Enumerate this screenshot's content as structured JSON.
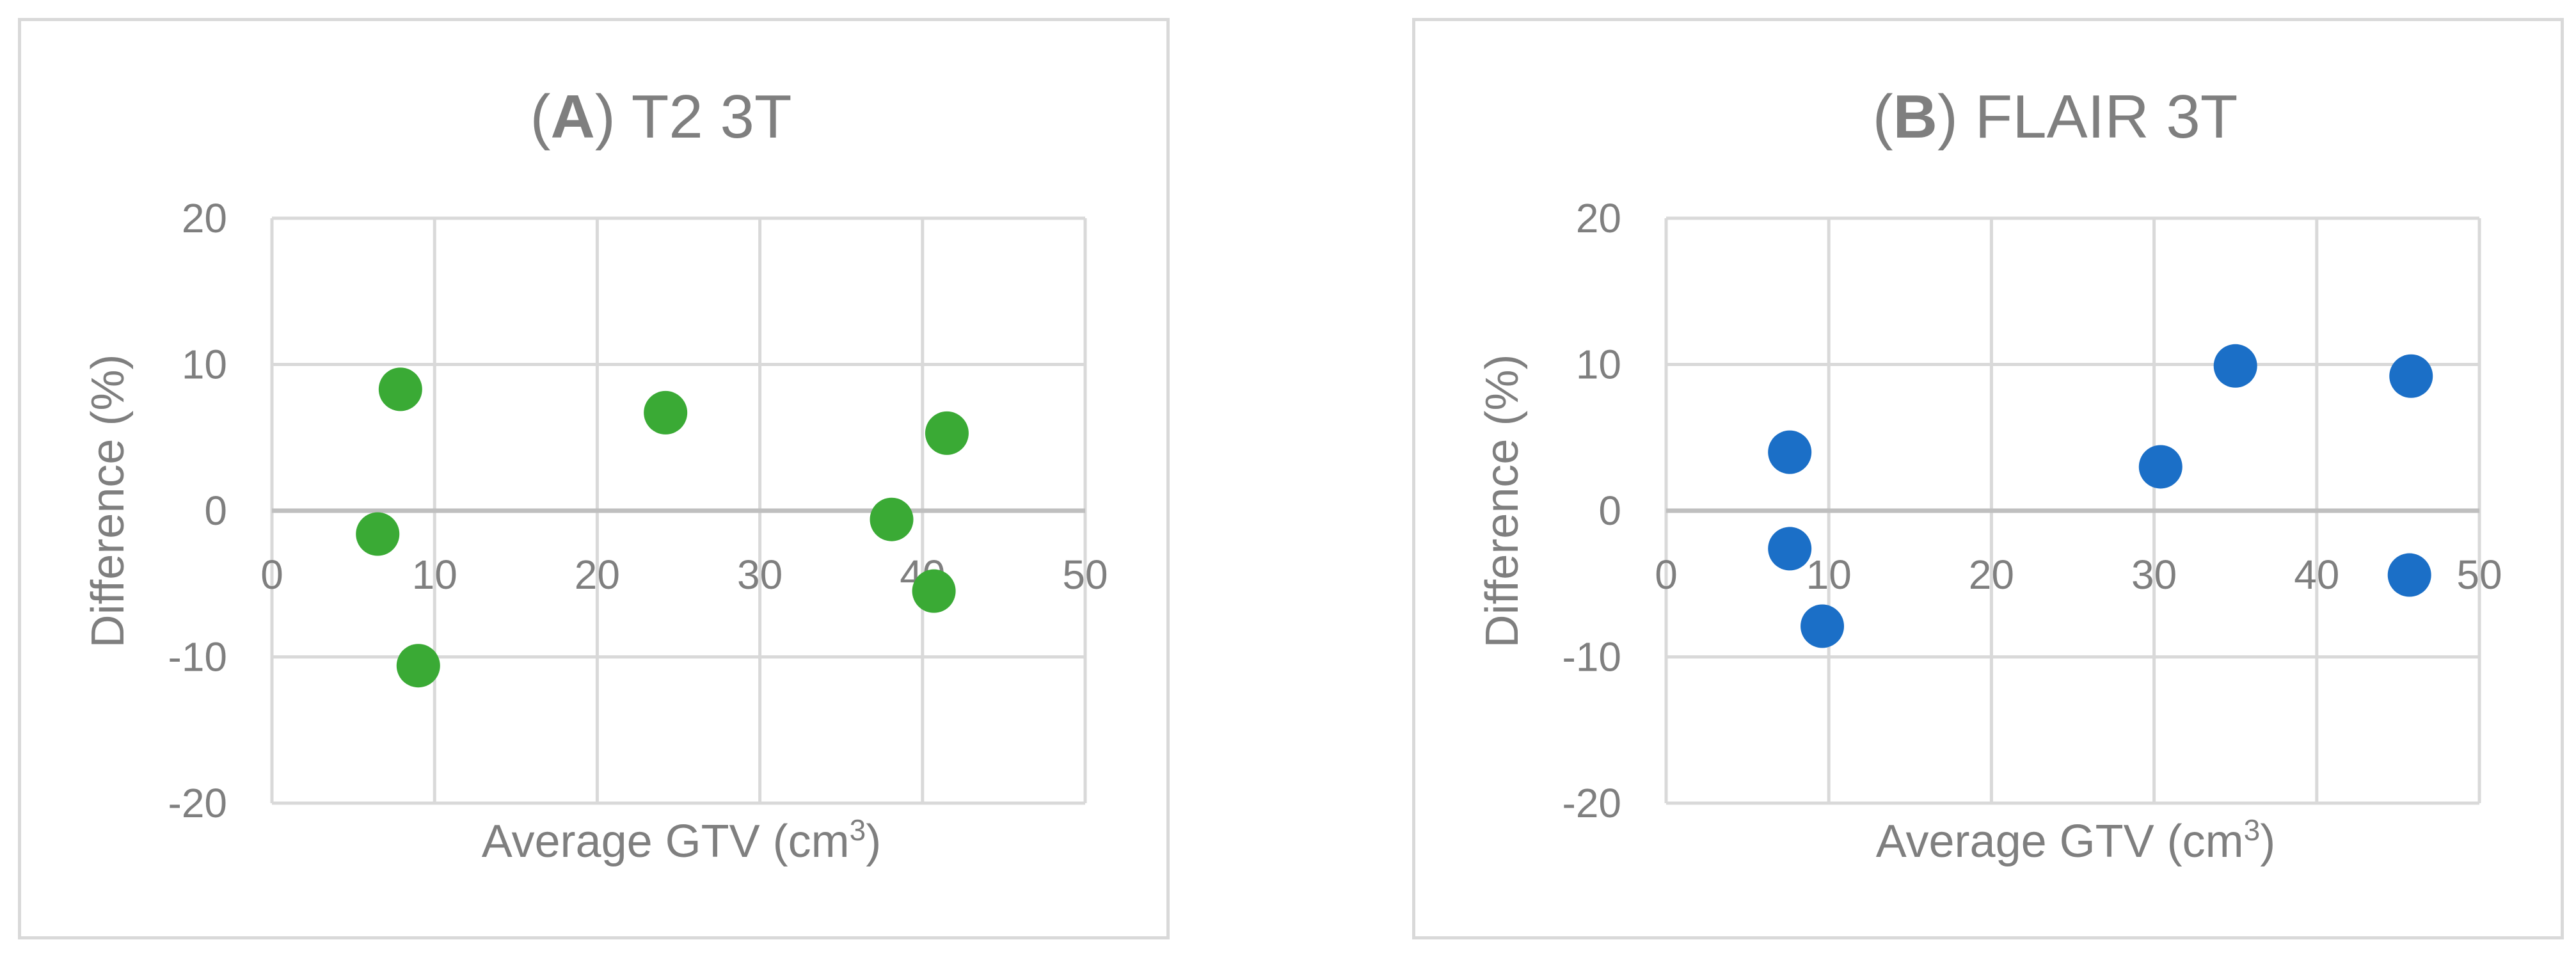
{
  "chart_data": [
    {
      "type": "scatter",
      "title_prefix": "(",
      "title_letter": "A",
      "title_rest": ") T2 3T",
      "xlabel": "Average GTV (cm",
      "xlabel_sup": "3",
      "xlabel_suffix": ")",
      "ylabel": "Difference (%)",
      "xlim": [
        0,
        50
      ],
      "ylim": [
        -20,
        20
      ],
      "x_ticks": [
        0,
        10,
        20,
        30,
        40,
        50
      ],
      "y_ticks": [
        20,
        10,
        0,
        -10,
        -20
      ],
      "grid": true,
      "legend": "none",
      "marker_color": "#3aaa35",
      "points": [
        {
          "x": 7.9,
          "y": 8.3
        },
        {
          "x": 6.5,
          "y": -1.6
        },
        {
          "x": 9.0,
          "y": -10.6
        },
        {
          "x": 24.2,
          "y": 6.7
        },
        {
          "x": 38.1,
          "y": -0.6
        },
        {
          "x": 41.5,
          "y": 5.3
        },
        {
          "x": 40.7,
          "y": -5.5
        }
      ]
    },
    {
      "type": "scatter",
      "title_prefix": "(",
      "title_letter": "B",
      "title_rest": ") FLAIR 3T",
      "xlabel": "Average GTV (cm",
      "xlabel_sup": "3",
      "xlabel_suffix": ")",
      "ylabel": "Difference (%)",
      "xlim": [
        0,
        50
      ],
      "ylim": [
        -20,
        20
      ],
      "x_ticks": [
        0,
        10,
        20,
        30,
        40,
        50
      ],
      "y_ticks": [
        20,
        10,
        0,
        -10,
        -20
      ],
      "grid": true,
      "legend": "none",
      "marker_color": "#1b6fc7",
      "points": [
        {
          "x": 7.6,
          "y": 4.0
        },
        {
          "x": 7.6,
          "y": -2.6
        },
        {
          "x": 9.6,
          "y": -7.9
        },
        {
          "x": 30.4,
          "y": 3.0
        },
        {
          "x": 35.0,
          "y": 9.9
        },
        {
          "x": 45.8,
          "y": 9.2
        },
        {
          "x": 45.7,
          "y": -4.4
        }
      ]
    }
  ]
}
